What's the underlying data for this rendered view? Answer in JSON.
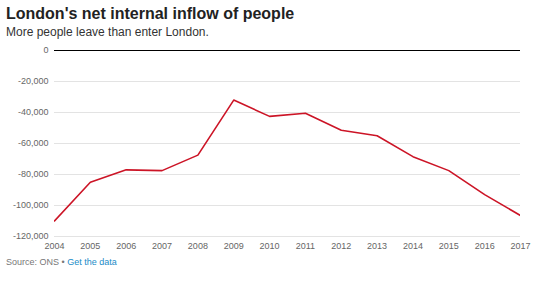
{
  "chart_data": {
    "type": "line",
    "title": "London's net internal inflow of people",
    "subtitle": "More people leave than enter London.",
    "caption": "Source: ONS •",
    "caption_link": "Get the data",
    "x": [
      2004,
      2005,
      2006,
      2007,
      2008,
      2009,
      2010,
      2011,
      2012,
      2013,
      2014,
      2015,
      2016,
      2017
    ],
    "values": [
      -110000,
      -85000,
      -77000,
      -77500,
      -67500,
      -32000,
      -42500,
      -40500,
      -51500,
      -55000,
      -68500,
      -77500,
      -93000,
      -106500
    ],
    "color": "#cc1426",
    "xlim": [
      2004,
      2017
    ],
    "xticks": [
      2004,
      2005,
      2006,
      2007,
      2008,
      2009,
      2010,
      2011,
      2012,
      2013,
      2014,
      2015,
      2016,
      2017
    ],
    "ylim": [
      -120000,
      0
    ],
    "yticks": [
      {
        "value": -120000,
        "label": "-120,000"
      },
      {
        "value": -100000,
        "label": "-100,000"
      },
      {
        "value": -80000,
        "label": "-80,000"
      },
      {
        "value": -60000,
        "label": "-60,000"
      },
      {
        "value": -40000,
        "label": "-40,000"
      },
      {
        "value": -20000,
        "label": "-20,000"
      },
      0
    ],
    "grid": true
  }
}
